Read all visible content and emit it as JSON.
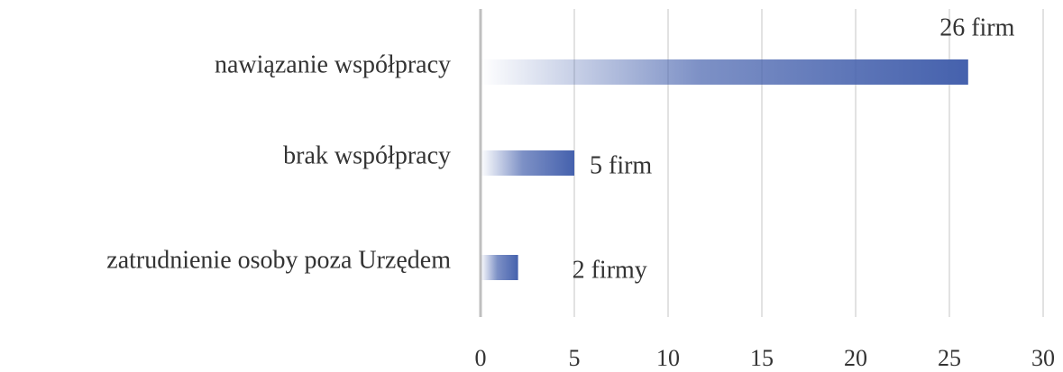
{
  "chart_data": {
    "type": "hbar",
    "categories": [
      "nawiązanie współpracy",
      "brak współpracy",
      "zatrudnienie osoby poza Urzędem"
    ],
    "values": [
      26,
      5,
      2
    ],
    "value_labels": [
      "26 firm",
      "5 firm",
      "2 firmy"
    ],
    "color": "#4561ad",
    "xlim": [
      0,
      30
    ],
    "xticks": [
      0,
      5,
      10,
      15,
      20,
      25,
      30
    ],
    "grid": true
  }
}
